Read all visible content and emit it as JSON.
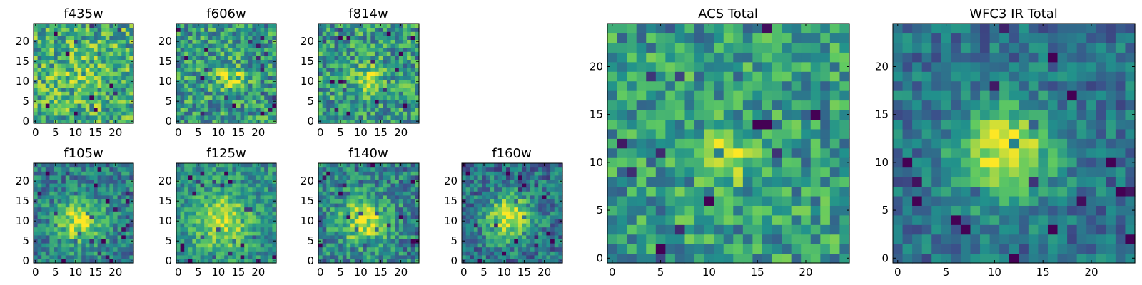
{
  "figure": {
    "colormap": [
      "#440154",
      "#3b528b",
      "#21918c",
      "#5ec962",
      "#fde725"
    ]
  },
  "chart_data": [
    {
      "type": "heatmap",
      "title": "f435w",
      "grid_size": 25,
      "center": [
        12,
        11
      ],
      "sigma": 5,
      "peak": 0.1,
      "noise": 0.6,
      "base": 0.62,
      "seed": 11,
      "xticks": [
        0,
        5,
        10,
        15,
        20
      ],
      "yticks": [
        0,
        5,
        10,
        15,
        20
      ],
      "xlim": [
        0,
        25
      ],
      "ylim": [
        0,
        25
      ]
    },
    {
      "type": "heatmap",
      "title": "f606w",
      "grid_size": 25,
      "center": [
        13,
        11
      ],
      "sigma": 2.5,
      "peak": 0.28,
      "noise": 0.55,
      "base": 0.55,
      "seed": 22,
      "xticks": [
        0,
        5,
        10,
        15,
        20
      ],
      "yticks": [
        0,
        5,
        10,
        15,
        20
      ],
      "xlim": [
        0,
        25
      ],
      "ylim": [
        0,
        25
      ]
    },
    {
      "type": "heatmap",
      "title": "f814w",
      "grid_size": 25,
      "center": [
        12,
        11
      ],
      "sigma": 2.5,
      "peak": 0.3,
      "noise": 0.55,
      "base": 0.55,
      "seed": 33,
      "xticks": [
        0,
        5,
        10,
        15,
        20
      ],
      "yticks": [
        0,
        5,
        10,
        15,
        20
      ],
      "xlim": [
        0,
        25
      ],
      "ylim": [
        0,
        25
      ]
    },
    {
      "type": "heatmap",
      "title": "f105w",
      "grid_size": 25,
      "center": [
        11,
        10
      ],
      "sigma": 4,
      "peak": 0.5,
      "noise": 0.45,
      "base": 0.42,
      "seed": 44,
      "xticks": [
        0,
        5,
        10,
        15,
        20
      ],
      "yticks": [
        0,
        5,
        10,
        15,
        20
      ],
      "xlim": [
        0,
        25
      ],
      "ylim": [
        0,
        25
      ]
    },
    {
      "type": "heatmap",
      "title": "f125w",
      "grid_size": 25,
      "center": [
        11,
        10
      ],
      "sigma": 5,
      "peak": 0.4,
      "noise": 0.4,
      "base": 0.5,
      "seed": 55,
      "xticks": [
        0,
        5,
        10,
        15,
        20
      ],
      "yticks": [
        0,
        5,
        10,
        15,
        20
      ],
      "xlim": [
        0,
        25
      ],
      "ylim": [
        0,
        25
      ]
    },
    {
      "type": "heatmap",
      "title": "f140w",
      "grid_size": 25,
      "center": [
        11,
        10
      ],
      "sigma": 4,
      "peak": 0.45,
      "noise": 0.5,
      "base": 0.45,
      "seed": 66,
      "xticks": [
        0,
        5,
        10,
        15,
        20
      ],
      "yticks": [
        0,
        5,
        10,
        15,
        20
      ],
      "xlim": [
        0,
        25
      ],
      "ylim": [
        0,
        25
      ]
    },
    {
      "type": "heatmap",
      "title": "f160w",
      "grid_size": 25,
      "center": [
        11,
        11
      ],
      "sigma": 4,
      "peak": 0.55,
      "noise": 0.45,
      "base": 0.38,
      "seed": 77,
      "xticks": [
        0,
        5,
        10,
        15,
        20
      ],
      "yticks": [
        0,
        5,
        10,
        15,
        20
      ],
      "xlim": [
        0,
        25
      ],
      "ylim": [
        0,
        25
      ]
    },
    {
      "type": "heatmap",
      "title": "ACS Total",
      "grid_size": 25,
      "center": [
        12,
        11
      ],
      "sigma": 2,
      "peak": 0.35,
      "noise": 0.5,
      "base": 0.55,
      "seed": 88,
      "xticks": [
        0,
        5,
        10,
        15,
        20
      ],
      "yticks": [
        0,
        5,
        10,
        15,
        20
      ],
      "xlim": [
        0,
        25
      ],
      "ylim": [
        0,
        25
      ]
    },
    {
      "type": "heatmap",
      "title": "WFC3 IR Total",
      "grid_size": 25,
      "center": [
        11,
        11
      ],
      "sigma": 3.5,
      "peak": 0.6,
      "noise": 0.35,
      "base": 0.38,
      "seed": 99,
      "xticks": [
        0,
        5,
        10,
        15,
        20
      ],
      "yticks": [
        0,
        5,
        10,
        15,
        20
      ],
      "xlim": [
        0,
        25
      ],
      "ylim": [
        0,
        25
      ]
    }
  ]
}
